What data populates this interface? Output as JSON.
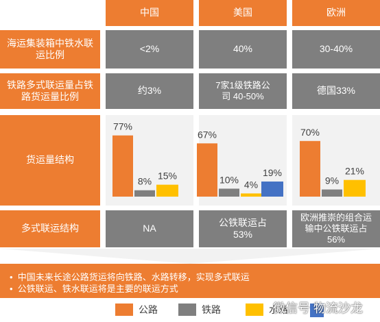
{
  "columns": [
    "中国",
    "美国",
    "欧洲"
  ],
  "rows": [
    {
      "label": "海运集装箱中铁水联运比例",
      "values": [
        "<2%",
        "40%",
        "30-40%"
      ]
    },
    {
      "label": "铁路多式联运量占铁路货运量比例",
      "values": [
        "约3%",
        "7家1级铁路公司 40-50%",
        "德国33%"
      ]
    }
  ],
  "chart_row_label": "货运量结构",
  "chart_data": {
    "type": "bar",
    "categories": [
      "中国",
      "美国",
      "欧洲"
    ],
    "series": [
      {
        "name": "公路",
        "values": [
          77,
          67,
          70
        ]
      },
      {
        "name": "铁路",
        "values": [
          8,
          10,
          9
        ]
      },
      {
        "name": "水路",
        "values": [
          15,
          19,
          21
        ]
      }
    ],
    "us_water_breakdown": [
      4,
      19
    ],
    "value_labels": [
      [
        "77%",
        "8%",
        "15%"
      ],
      [
        "67%",
        "10%",
        "4%",
        "19%"
      ],
      [
        "70%",
        "9%",
        "21%"
      ]
    ],
    "colors": {
      "公路": "#ED7D31",
      "铁路": "#7F7F7F",
      "水路": "#FFC000",
      "水路2": "#4472C4"
    },
    "ylim": [
      0,
      100
    ]
  },
  "multimodal": {
    "label": "多式联运结构",
    "values": [
      "NA",
      "公铁联运占53%",
      "欧洲推崇的组合运输中公铁联运占56%"
    ]
  },
  "conclusion": [
    "中国未来长途公路货运将向铁路、水路转移，实现多式联运",
    "公铁联运、铁水联运将是主要的联运方式"
  ],
  "legend": [
    {
      "name": "公路",
      "color": "#ED7D31"
    },
    {
      "name": "铁路",
      "color": "#7F7F7F"
    },
    {
      "name": "水路",
      "color": "#FFC000"
    }
  ],
  "watermark": "微信号 物流沙龙"
}
